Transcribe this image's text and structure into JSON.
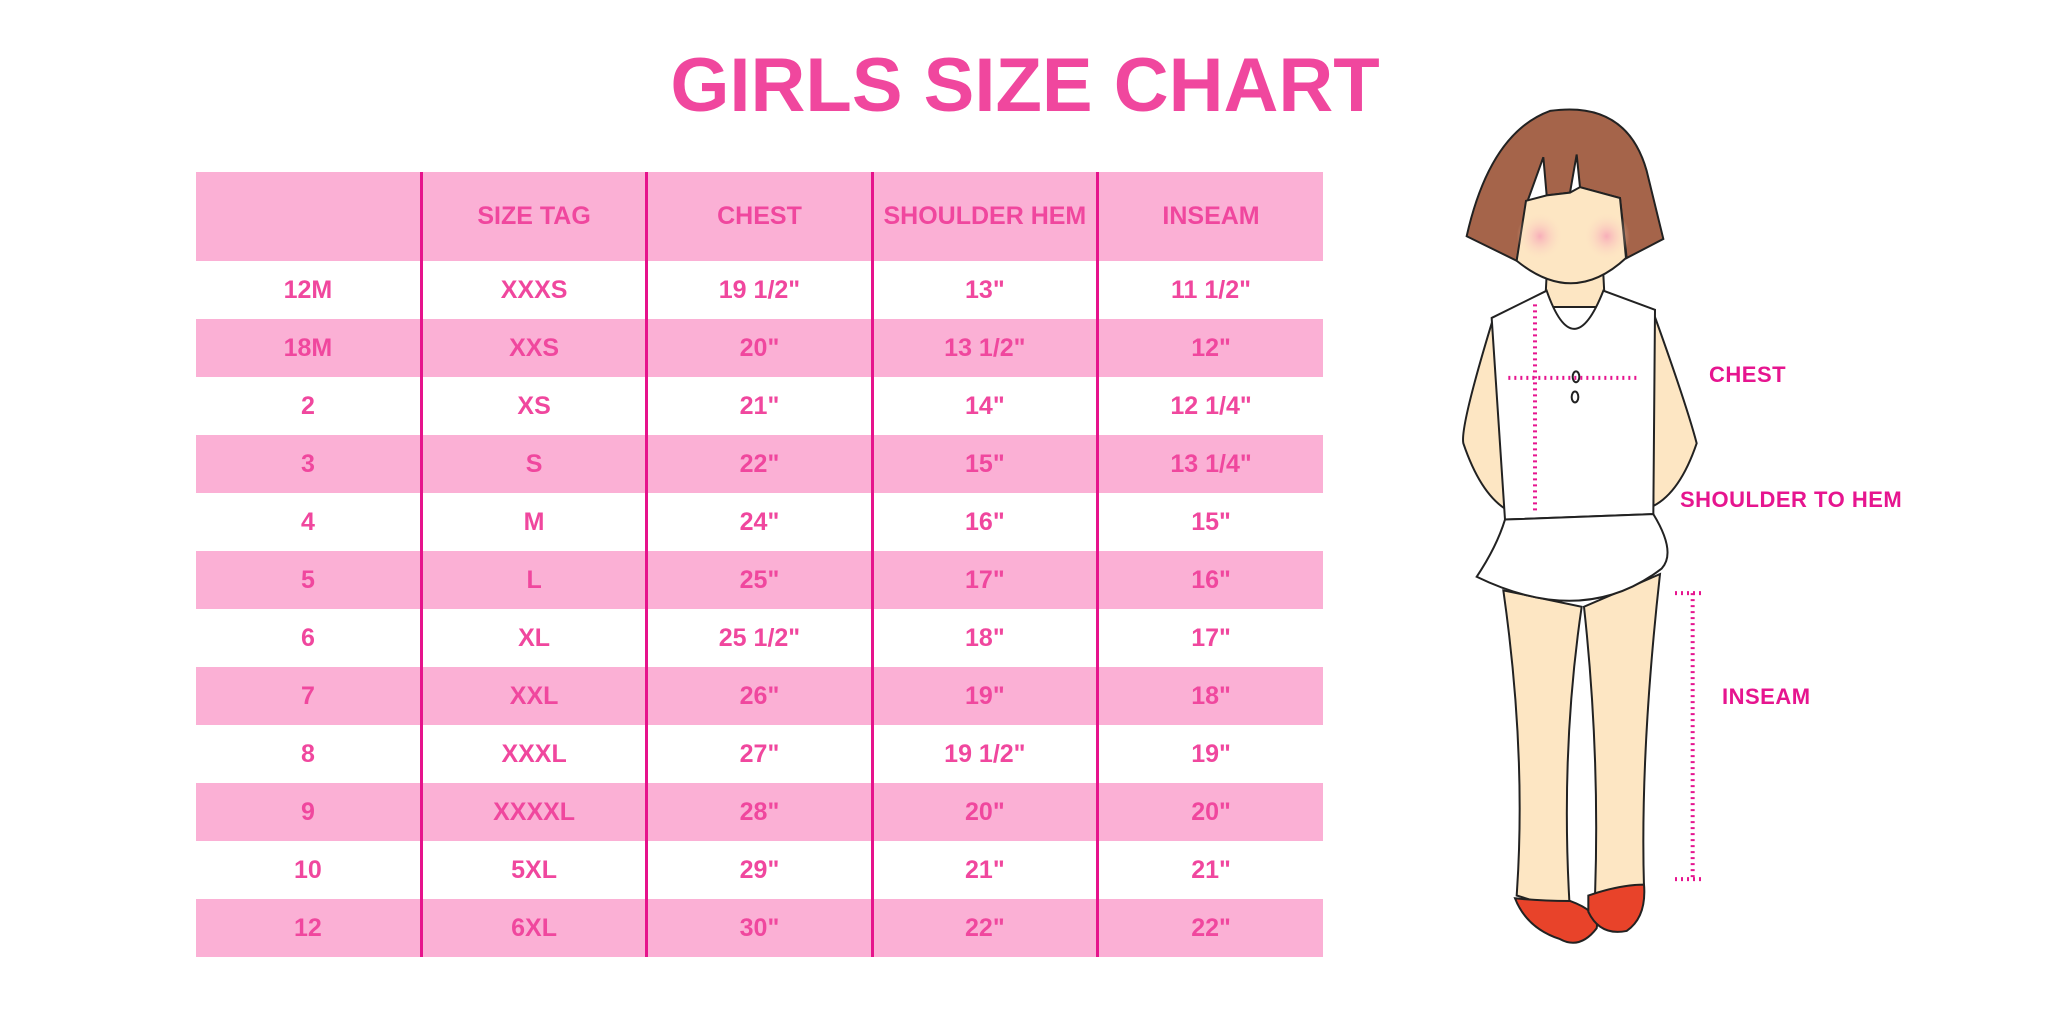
{
  "chart_data": {
    "type": "table",
    "title": "GIRLS SIZE CHART",
    "columns": [
      "",
      "SIZE TAG",
      "CHEST",
      "SHOULDER HEM",
      "INSEAM"
    ],
    "rows": [
      [
        "12M",
        "XXXS",
        "19 1/2\"",
        "13\"",
        "11 1/2\""
      ],
      [
        "18M",
        "XXS",
        "20\"",
        "13 1/2\"",
        "12\""
      ],
      [
        "2",
        "XS",
        "21\"",
        "14\"",
        "12 1/4\""
      ],
      [
        "3",
        "S",
        "22\"",
        "15\"",
        "13 1/4\""
      ],
      [
        "4",
        "M",
        "24\"",
        "16\"",
        "15\""
      ],
      [
        "5",
        "L",
        "25\"",
        "17\"",
        "16\""
      ],
      [
        "6",
        "XL",
        "25 1/2\"",
        "18\"",
        "17\""
      ],
      [
        "7",
        "XXL",
        "26\"",
        "19\"",
        "18\""
      ],
      [
        "8",
        "XXXL",
        "27\"",
        "19 1/2\"",
        "19\""
      ],
      [
        "9",
        "XXXXL",
        "28\"",
        "20\"",
        "20\""
      ],
      [
        "10",
        "5XL",
        "29\"",
        "21\"",
        "21\""
      ],
      [
        "12",
        "6XL",
        "30\"",
        "22\"",
        "22\""
      ]
    ]
  },
  "figure": {
    "labels": {
      "chest": "CHEST",
      "shoulder_to_hem": "SHOULDER TO HEM",
      "inseam": "INSEAM"
    }
  },
  "colors": {
    "accent": "#f0479e",
    "row_fill": "#fbb0d5",
    "divider": "#e6138c",
    "label": "#e6158f"
  }
}
